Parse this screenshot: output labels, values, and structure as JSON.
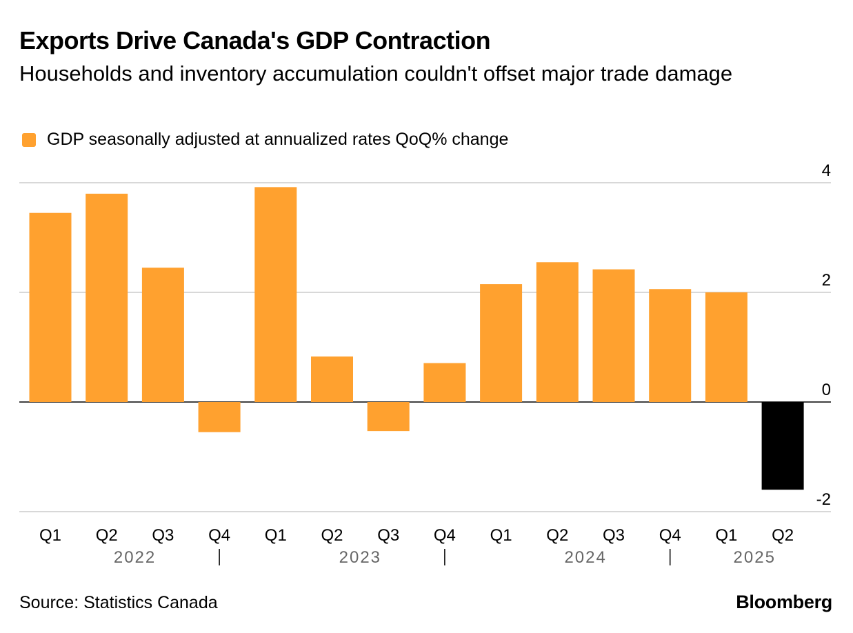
{
  "header": {
    "title": "Exports Drive Canada's GDP Contraction",
    "subtitle": "Households and inventory accumulation couldn't offset major trade damage"
  },
  "footer": {
    "source": "Source: Statistics Canada",
    "brand": "Bloomberg"
  },
  "colors": {
    "positive": "#ffa12f",
    "highlight": "#000000",
    "grid": "#cccccc",
    "tick_text": "#000000",
    "year_text": "#666666"
  },
  "chart_data": {
    "type": "bar",
    "categories": [
      "Q1",
      "Q2",
      "Q3",
      "Q4",
      "Q1",
      "Q2",
      "Q3",
      "Q4",
      "Q1",
      "Q2",
      "Q3",
      "Q4",
      "Q1",
      "Q2"
    ],
    "years": [
      {
        "label": "2022",
        "quarters": 4
      },
      {
        "label": "2023",
        "quarters": 4
      },
      {
        "label": "2024",
        "quarters": 4
      },
      {
        "label": "2025",
        "quarters": 2
      }
    ],
    "series": [
      {
        "name": "GDP seasonally adjusted at annualized rates QoQ% change",
        "values": [
          3.45,
          3.8,
          2.45,
          -0.55,
          3.92,
          0.83,
          -0.53,
          0.71,
          2.15,
          2.55,
          2.42,
          2.06,
          2.0,
          -1.6
        ]
      }
    ],
    "highlight_last": true,
    "ylim": [
      -2,
      4
    ],
    "yticks": [
      -2,
      0,
      2,
      4
    ],
    "grid": true,
    "y_axis_side": "right",
    "legend_position": "top-left",
    "title": "Exports Drive Canada's GDP Contraction",
    "subtitle": "Households and inventory accumulation couldn't offset major trade damage",
    "xlabel": "",
    "ylabel": ""
  }
}
